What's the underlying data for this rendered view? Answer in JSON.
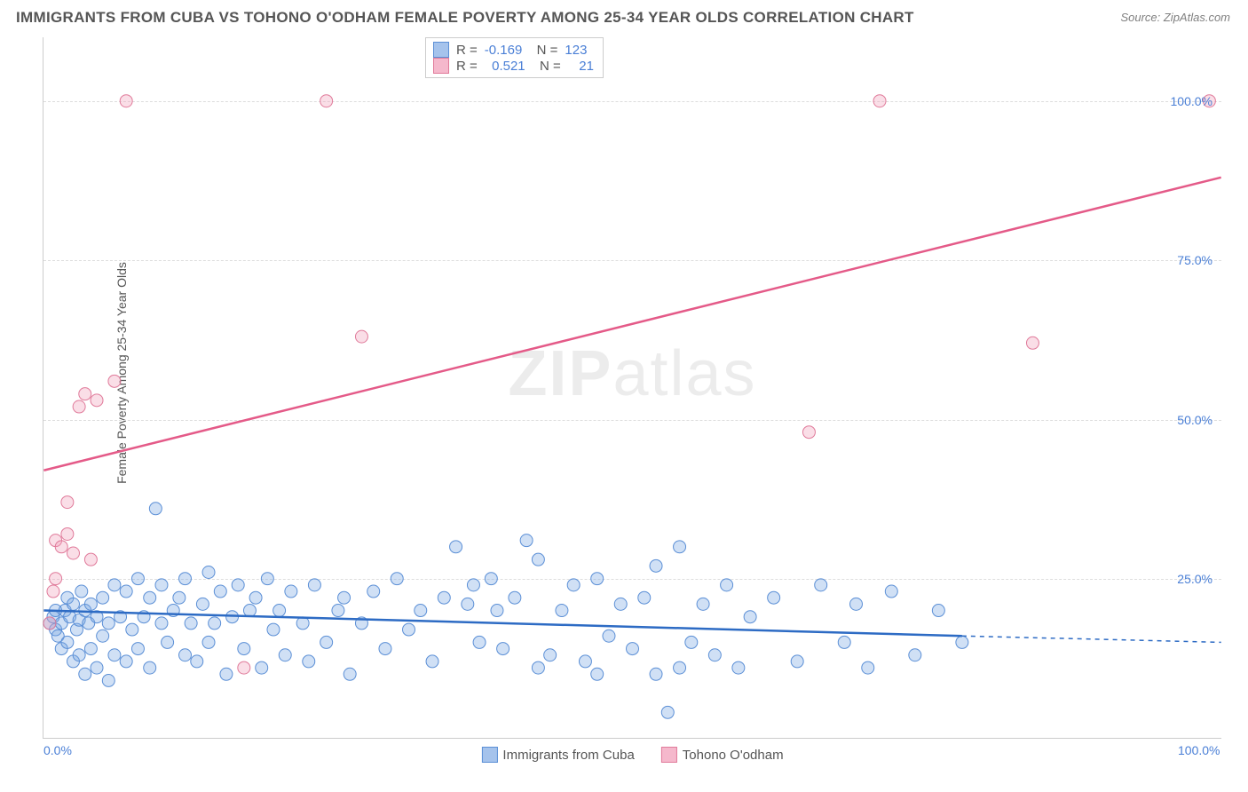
{
  "title": "IMMIGRANTS FROM CUBA VS TOHONO O'ODHAM FEMALE POVERTY AMONG 25-34 YEAR OLDS CORRELATION CHART",
  "source": "Source: ZipAtlas.com",
  "watermark_bold": "ZIP",
  "watermark_rest": "atlas",
  "y_axis_label": "Female Poverty Among 25-34 Year Olds",
  "chart": {
    "type": "scatter",
    "xlim": [
      0,
      100
    ],
    "ylim": [
      0,
      110
    ],
    "xticks": [
      {
        "v": 0,
        "label": "0.0%"
      },
      {
        "v": 100,
        "label": "100.0%"
      }
    ],
    "yticks": [
      {
        "v": 25,
        "label": "25.0%"
      },
      {
        "v": 50,
        "label": "50.0%"
      },
      {
        "v": 75,
        "label": "75.0%"
      },
      {
        "v": 100,
        "label": "100.0%"
      }
    ],
    "grid_color": "#dddddd",
    "background": "#ffffff",
    "marker_radius": 7,
    "marker_stroke_width": 1,
    "line_width": 2.5,
    "series": [
      {
        "id": "blue",
        "label": "Immigrants from Cuba",
        "fill": "rgba(120,165,225,0.35)",
        "stroke": "#5b8fd6",
        "line_color": "#2d6bc4",
        "swatch_fill": "#a5c3ec",
        "swatch_border": "#5b8fd6",
        "R": "-0.169",
        "N": "123",
        "regression": {
          "x1": 0,
          "y1": 20,
          "x2": 78,
          "y2": 16,
          "dash_x1": 78,
          "dash_x2": 100,
          "dash_y1": 16,
          "dash_y2": 15
        },
        "points": [
          [
            0.5,
            18
          ],
          [
            0.8,
            19
          ],
          [
            1,
            17
          ],
          [
            1,
            20
          ],
          [
            1.2,
            16
          ],
          [
            1.5,
            18
          ],
          [
            1.5,
            14
          ],
          [
            1.8,
            20
          ],
          [
            2,
            22
          ],
          [
            2,
            15
          ],
          [
            2.2,
            19
          ],
          [
            2.5,
            21
          ],
          [
            2.5,
            12
          ],
          [
            2.8,
            17
          ],
          [
            3,
            18.5
          ],
          [
            3,
            13
          ],
          [
            3.2,
            23
          ],
          [
            3.5,
            20
          ],
          [
            3.5,
            10
          ],
          [
            3.8,
            18
          ],
          [
            4,
            14
          ],
          [
            4,
            21
          ],
          [
            4.5,
            19
          ],
          [
            4.5,
            11
          ],
          [
            5,
            22
          ],
          [
            5,
            16
          ],
          [
            5.5,
            18
          ],
          [
            5.5,
            9
          ],
          [
            6,
            24
          ],
          [
            6,
            13
          ],
          [
            6.5,
            19
          ],
          [
            7,
            23
          ],
          [
            7,
            12
          ],
          [
            7.5,
            17
          ],
          [
            8,
            25
          ],
          [
            8,
            14
          ],
          [
            8.5,
            19
          ],
          [
            9,
            22
          ],
          [
            9,
            11
          ],
          [
            9.5,
            36
          ],
          [
            10,
            18
          ],
          [
            10,
            24
          ],
          [
            10.5,
            15
          ],
          [
            11,
            20
          ],
          [
            11.5,
            22
          ],
          [
            12,
            13
          ],
          [
            12,
            25
          ],
          [
            12.5,
            18
          ],
          [
            13,
            12
          ],
          [
            13.5,
            21
          ],
          [
            14,
            26
          ],
          [
            14,
            15
          ],
          [
            14.5,
            18
          ],
          [
            15,
            23
          ],
          [
            15.5,
            10
          ],
          [
            16,
            19
          ],
          [
            16.5,
            24
          ],
          [
            17,
            14
          ],
          [
            17.5,
            20
          ],
          [
            18,
            22
          ],
          [
            18.5,
            11
          ],
          [
            19,
            25
          ],
          [
            19.5,
            17
          ],
          [
            20,
            20
          ],
          [
            20.5,
            13
          ],
          [
            21,
            23
          ],
          [
            22,
            18
          ],
          [
            22.5,
            12
          ],
          [
            23,
            24
          ],
          [
            24,
            15
          ],
          [
            25,
            20
          ],
          [
            25.5,
            22
          ],
          [
            26,
            10
          ],
          [
            27,
            18
          ],
          [
            28,
            23
          ],
          [
            29,
            14
          ],
          [
            30,
            25
          ],
          [
            31,
            17
          ],
          [
            32,
            20
          ],
          [
            33,
            12
          ],
          [
            34,
            22
          ],
          [
            35,
            30
          ],
          [
            36,
            21
          ],
          [
            36.5,
            24
          ],
          [
            37,
            15
          ],
          [
            38,
            25
          ],
          [
            38.5,
            20
          ],
          [
            39,
            14
          ],
          [
            40,
            22
          ],
          [
            41,
            31
          ],
          [
            42,
            28
          ],
          [
            43,
            13
          ],
          [
            44,
            20
          ],
          [
            45,
            24
          ],
          [
            46,
            12
          ],
          [
            47,
            25
          ],
          [
            48,
            16
          ],
          [
            49,
            21
          ],
          [
            50,
            14
          ],
          [
            51,
            22
          ],
          [
            52,
            27
          ],
          [
            53,
            4
          ],
          [
            54,
            11
          ],
          [
            54,
            30
          ],
          [
            55,
            15
          ],
          [
            56,
            21
          ],
          [
            57,
            13
          ],
          [
            58,
            24
          ],
          [
            59,
            11
          ],
          [
            60,
            19
          ],
          [
            62,
            22
          ],
          [
            64,
            12
          ],
          [
            66,
            24
          ],
          [
            68,
            15
          ],
          [
            69,
            21
          ],
          [
            70,
            11
          ],
          [
            72,
            23
          ],
          [
            74,
            13
          ],
          [
            76,
            20
          ],
          [
            78,
            15
          ],
          [
            42,
            11
          ],
          [
            47,
            10
          ],
          [
            52,
            10
          ]
        ]
      },
      {
        "id": "pink",
        "label": "Tohono O'odham",
        "fill": "rgba(240,160,185,0.35)",
        "stroke": "#e07a9a",
        "line_color": "#e45a88",
        "swatch_fill": "#f5b8cc",
        "swatch_border": "#e07a9a",
        "R": "0.521",
        "N": "21",
        "regression": {
          "x1": 0,
          "y1": 42,
          "x2": 100,
          "y2": 88
        },
        "points": [
          [
            0.5,
            18
          ],
          [
            0.8,
            23
          ],
          [
            1,
            25
          ],
          [
            1,
            31
          ],
          [
            1.5,
            30
          ],
          [
            2,
            32
          ],
          [
            2,
            37
          ],
          [
            2.5,
            29
          ],
          [
            3,
            52
          ],
          [
            3.5,
            54
          ],
          [
            4,
            28
          ],
          [
            4.5,
            53
          ],
          [
            6,
            56
          ],
          [
            7,
            100
          ],
          [
            17,
            11
          ],
          [
            24,
            100
          ],
          [
            27,
            63
          ],
          [
            65,
            48
          ],
          [
            71,
            100
          ],
          [
            84,
            62
          ],
          [
            99,
            100
          ]
        ]
      }
    ]
  }
}
